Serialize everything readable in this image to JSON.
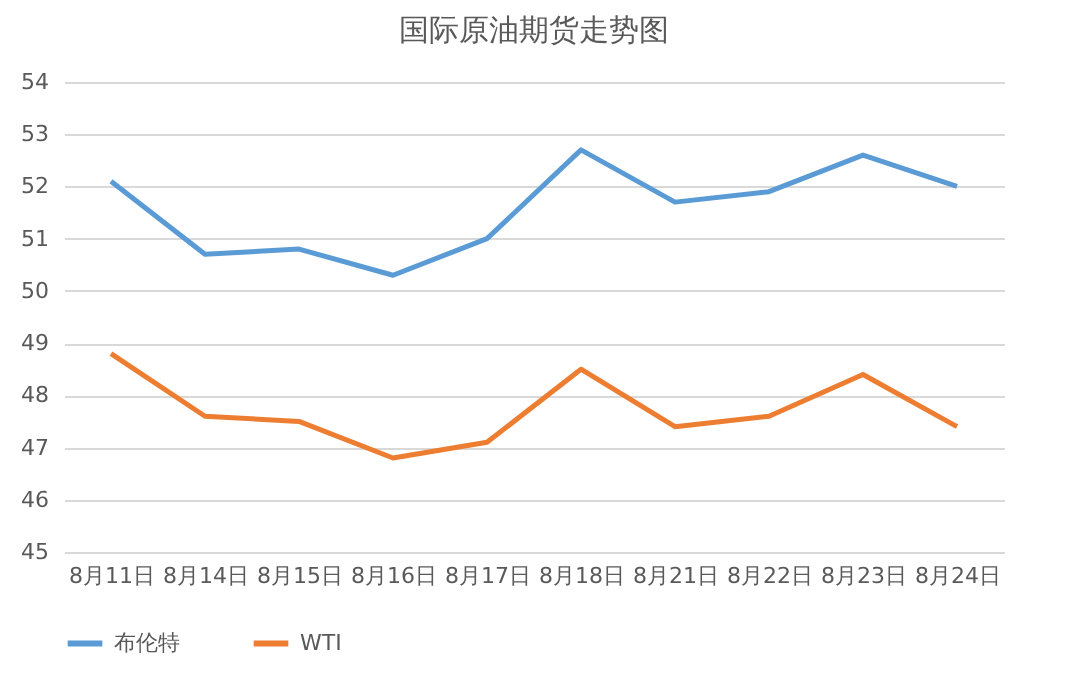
{
  "chart_data": {
    "type": "line",
    "title": "国际原油期货走势图",
    "categories": [
      "8月11日",
      "8月14日",
      "8月15日",
      "8月16日",
      "8月17日",
      "8月18日",
      "8月21日",
      "8月22日",
      "8月23日",
      "8月24日"
    ],
    "series": [
      {
        "name": "布伦特",
        "color": "#5b9bd5",
        "values": [
          52.1,
          50.7,
          50.8,
          50.3,
          51.0,
          52.7,
          51.7,
          51.9,
          52.6,
          52.0
        ]
      },
      {
        "name": "WTI",
        "color": "#ed7d31",
        "values": [
          48.8,
          47.6,
          47.5,
          46.8,
          47.1,
          48.5,
          47.4,
          47.6,
          48.4,
          47.4
        ]
      }
    ],
    "ylim": [
      45,
      54
    ],
    "yticks": [
      45,
      46,
      47,
      48,
      49,
      50,
      51,
      52,
      53,
      54
    ],
    "grid": "y",
    "legend": "bottom",
    "marker": "none",
    "line_style": "solid"
  }
}
